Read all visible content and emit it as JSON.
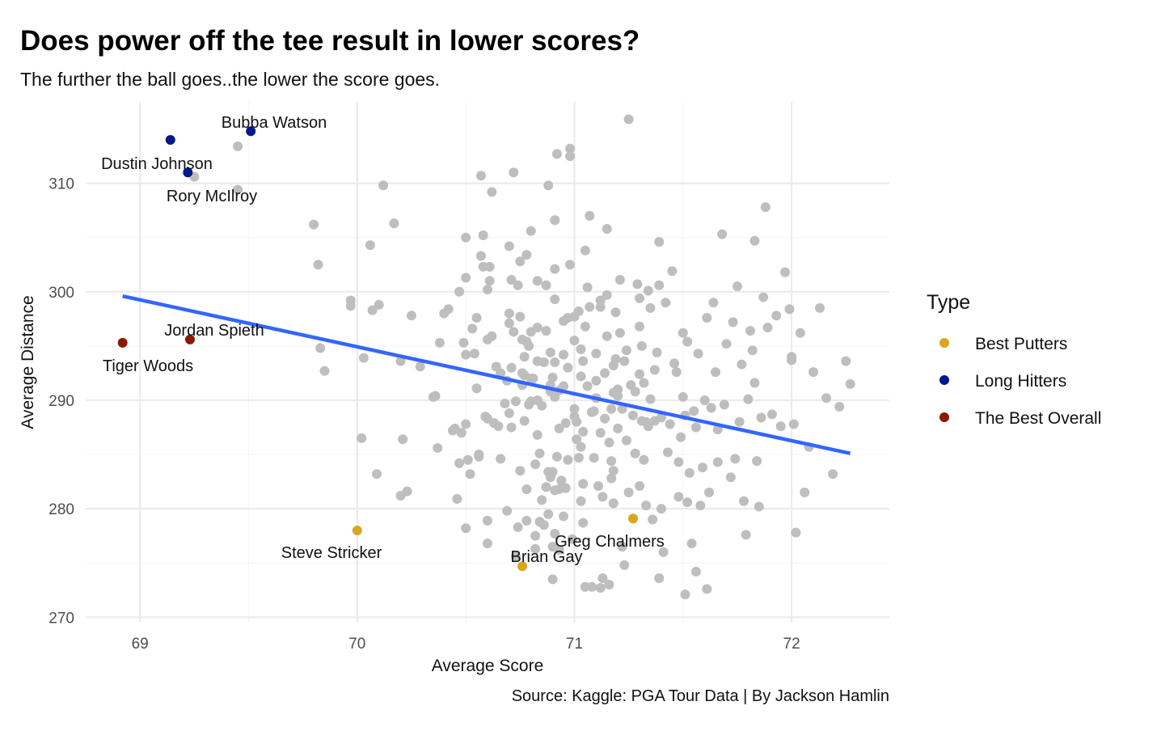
{
  "chart_data": {
    "type": "scatter",
    "title": "Does power off the tee result in lower scores?",
    "subtitle": "The further the ball goes..the lower the score goes.",
    "xlabel": "Average Score",
    "ylabel": "Average Distance",
    "caption": "Source: Kaggle: PGA Tour Data | By Jackson Hamlin",
    "xlim": [
      68.75,
      72.45
    ],
    "ylim": [
      269.5,
      317.5
    ],
    "x_ticks": [
      69,
      70,
      71,
      72
    ],
    "y_ticks": [
      270,
      280,
      290,
      300,
      310
    ],
    "grid": true,
    "legend": {
      "title": "Type",
      "position": "right",
      "entries": [
        {
          "label": "Best Putters",
          "color": "#DAA520"
        },
        {
          "label": "Long Hitters",
          "color": "#00198B"
        },
        {
          "label": "The Best Overall",
          "color": "#8B1A00"
        }
      ]
    },
    "trend_line": {
      "color": "#3366FF",
      "x": [
        68.92,
        72.27
      ],
      "y": [
        299.6,
        285.1
      ]
    },
    "background_color": "#BEBEBE",
    "background_points": [
      [
        69.25,
        310.6
      ],
      [
        69.45,
        313.4
      ],
      [
        69.45,
        309.4
      ],
      [
        69.8,
        306.2
      ],
      [
        69.82,
        302.5
      ],
      [
        69.83,
        294.8
      ],
      [
        69.85,
        292.7
      ],
      [
        69.97,
        299.2
      ],
      [
        69.97,
        298.7
      ],
      [
        70.02,
        286.5
      ],
      [
        70.03,
        293.9
      ],
      [
        70.06,
        304.3
      ],
      [
        70.07,
        298.3
      ],
      [
        70.1,
        298.8
      ],
      [
        70.09,
        283.2
      ],
      [
        70.12,
        309.8
      ],
      [
        70.17,
        306.3
      ],
      [
        70.2,
        293.6
      ],
      [
        70.2,
        281.2
      ],
      [
        70.21,
        286.4
      ],
      [
        70.23,
        281.6
      ],
      [
        70.25,
        297.8
      ],
      [
        70.29,
        293.1
      ],
      [
        70.35,
        290.3
      ],
      [
        70.36,
        290.4
      ],
      [
        70.37,
        285.6
      ],
      [
        70.38,
        295.3
      ],
      [
        70.4,
        298.0
      ],
      [
        70.42,
        298.4
      ],
      [
        70.44,
        287.2
      ],
      [
        70.45,
        287.4
      ],
      [
        70.46,
        280.9
      ],
      [
        70.47,
        284.2
      ],
      [
        70.47,
        300.0
      ],
      [
        70.48,
        287.0
      ],
      [
        70.49,
        295.3
      ],
      [
        70.5,
        278.2
      ],
      [
        70.5,
        287.8
      ],
      [
        70.5,
        294.2
      ],
      [
        70.5,
        301.3
      ],
      [
        70.5,
        305.0
      ],
      [
        70.51,
        284.5
      ],
      [
        70.52,
        283.2
      ],
      [
        70.53,
        296.6
      ],
      [
        70.54,
        294.3
      ],
      [
        70.55,
        291.1
      ],
      [
        70.55,
        297.6
      ],
      [
        70.56,
        284.8
      ],
      [
        70.56,
        285.0
      ],
      [
        70.57,
        303.3
      ],
      [
        70.57,
        310.7
      ],
      [
        70.58,
        302.3
      ],
      [
        70.58,
        305.2
      ],
      [
        70.59,
        288.5
      ],
      [
        70.6,
        276.8
      ],
      [
        70.6,
        278.9
      ],
      [
        70.6,
        288.3
      ],
      [
        70.6,
        295.6
      ],
      [
        70.6,
        300.2
      ],
      [
        70.61,
        302.3
      ],
      [
        70.61,
        301.0
      ],
      [
        70.62,
        295.9
      ],
      [
        70.62,
        309.2
      ],
      [
        70.63,
        287.9
      ],
      [
        70.64,
        293.1
      ],
      [
        70.65,
        287.6
      ],
      [
        70.66,
        284.6
      ],
      [
        70.66,
        292.5
      ],
      [
        70.68,
        289.7
      ],
      [
        70.69,
        279.8
      ],
      [
        70.69,
        291.8
      ],
      [
        70.7,
        288.8
      ],
      [
        70.7,
        297.1
      ],
      [
        70.7,
        298.0
      ],
      [
        70.7,
        304.2
      ],
      [
        70.71,
        301.1
      ],
      [
        70.71,
        287.5
      ],
      [
        70.71,
        293.0
      ],
      [
        70.72,
        296.3
      ],
      [
        70.72,
        311.0
      ],
      [
        70.73,
        289.9
      ],
      [
        70.73,
        275.6
      ],
      [
        70.74,
        300.6
      ],
      [
        70.74,
        278.3
      ],
      [
        70.75,
        297.7
      ],
      [
        70.75,
        302.8
      ],
      [
        70.75,
        283.5
      ],
      [
        70.76,
        291.4
      ],
      [
        70.76,
        292.5
      ],
      [
        70.76,
        295.6
      ],
      [
        70.77,
        288.1
      ],
      [
        70.77,
        292.3
      ],
      [
        70.77,
        294.0
      ],
      [
        70.78,
        278.9
      ],
      [
        70.78,
        303.4
      ],
      [
        70.78,
        295.4
      ],
      [
        70.78,
        281.8
      ],
      [
        70.79,
        289.6
      ],
      [
        70.79,
        295.0
      ],
      [
        70.8,
        289.9
      ],
      [
        70.8,
        292.0
      ],
      [
        70.8,
        296.3
      ],
      [
        70.8,
        305.6
      ],
      [
        70.81,
        292.0
      ],
      [
        70.82,
        276.3
      ],
      [
        70.82,
        277.5
      ],
      [
        70.82,
        284.1
      ],
      [
        70.83,
        286.8
      ],
      [
        70.83,
        290.0
      ],
      [
        70.83,
        293.6
      ],
      [
        70.83,
        296.7
      ],
      [
        70.83,
        301.0
      ],
      [
        70.84,
        278.8
      ],
      [
        70.84,
        285.1
      ],
      [
        70.85,
        280.8
      ],
      [
        70.85,
        289.5
      ],
      [
        70.86,
        293.5
      ],
      [
        70.86,
        278.5
      ],
      [
        70.87,
        300.6
      ],
      [
        70.87,
        282.0
      ],
      [
        70.87,
        296.4
      ],
      [
        70.88,
        279.5
      ],
      [
        70.88,
        309.8
      ],
      [
        70.88,
        283.4
      ],
      [
        70.89,
        282.9
      ],
      [
        70.89,
        290.8
      ],
      [
        70.89,
        291.4
      ],
      [
        70.89,
        294.4
      ],
      [
        70.9,
        273.5
      ],
      [
        70.9,
        276.5
      ],
      [
        70.9,
        283.4
      ],
      [
        70.9,
        292.1
      ],
      [
        70.91,
        277.7
      ],
      [
        70.91,
        281.7
      ],
      [
        70.91,
        290.3
      ],
      [
        70.91,
        293.5
      ],
      [
        70.91,
        299.3
      ],
      [
        70.91,
        302.1
      ],
      [
        70.91,
        306.6
      ],
      [
        70.92,
        284.8
      ],
      [
        70.92,
        312.7
      ],
      [
        70.93,
        290.9
      ],
      [
        70.93,
        281.8
      ],
      [
        70.93,
        276.2
      ],
      [
        70.93,
        287.4
      ],
      [
        70.94,
        282.6
      ],
      [
        70.95,
        279.3
      ],
      [
        70.95,
        294.2
      ],
      [
        70.95,
        297.3
      ],
      [
        70.95,
        291.3
      ],
      [
        70.96,
        281.9
      ],
      [
        70.96,
        287.9
      ],
      [
        70.97,
        284.5
      ],
      [
        70.97,
        293.0
      ],
      [
        70.97,
        297.6
      ],
      [
        70.98,
        312.5
      ],
      [
        70.98,
        313.2
      ],
      [
        70.98,
        302.5
      ],
      [
        70.99,
        277.2
      ],
      [
        71.0,
        288.5
      ],
      [
        71.0,
        289.2
      ],
      [
        71.0,
        295.5
      ],
      [
        71.0,
        297.7
      ],
      [
        71.01,
        286.4
      ],
      [
        71.01,
        288.0
      ],
      [
        71.02,
        298.2
      ],
      [
        71.02,
        284.7
      ],
      [
        71.03,
        292.2
      ],
      [
        71.03,
        294.7
      ],
      [
        71.03,
        285.7
      ],
      [
        71.03,
        280.7
      ],
      [
        71.04,
        278.7
      ],
      [
        71.04,
        282.3
      ],
      [
        71.04,
        287.1
      ],
      [
        71.04,
        293.6
      ],
      [
        71.05,
        303.8
      ],
      [
        71.05,
        296.8
      ],
      [
        71.06,
        291.3
      ],
      [
        71.06,
        300.4
      ],
      [
        71.07,
        298.6
      ],
      [
        71.07,
        307.0
      ],
      [
        71.08,
        288.9
      ],
      [
        71.08,
        272.8
      ],
      [
        71.09,
        284.7
      ],
      [
        71.09,
        289.0
      ],
      [
        71.1,
        290.2
      ],
      [
        71.1,
        291.8
      ],
      [
        71.1,
        294.3
      ],
      [
        71.11,
        282.1
      ],
      [
        71.12,
        298.6
      ],
      [
        71.12,
        287.0
      ],
      [
        71.12,
        299.2
      ],
      [
        71.13,
        273.6
      ],
      [
        71.13,
        281.1
      ],
      [
        71.14,
        288.3
      ],
      [
        71.14,
        292.5
      ],
      [
        71.15,
        299.7
      ],
      [
        71.15,
        305.8
      ],
      [
        71.15,
        295.9
      ],
      [
        71.16,
        273.0
      ],
      [
        71.16,
        286.1
      ],
      [
        71.17,
        289.2
      ],
      [
        71.17,
        282.8
      ],
      [
        71.17,
        284.4
      ],
      [
        71.18,
        280.5
      ],
      [
        71.18,
        283.5
      ],
      [
        71.18,
        290.7
      ],
      [
        71.18,
        293.2
      ],
      [
        71.19,
        293.8
      ],
      [
        71.19,
        298.1
      ],
      [
        71.2,
        287.4
      ],
      [
        71.2,
        290.4
      ],
      [
        71.2,
        291.0
      ],
      [
        71.21,
        296.2
      ],
      [
        71.21,
        301.1
      ],
      [
        71.22,
        289.2
      ],
      [
        71.22,
        276.5
      ],
      [
        71.23,
        293.6
      ],
      [
        71.23,
        274.8
      ],
      [
        71.24,
        286.3
      ],
      [
        71.24,
        294.6
      ],
      [
        71.25,
        281.5
      ],
      [
        71.26,
        291.4
      ],
      [
        71.27,
        288.6
      ],
      [
        71.28,
        285.1
      ],
      [
        71.28,
        290.8
      ],
      [
        71.29,
        300.7
      ],
      [
        71.3,
        282.1
      ],
      [
        71.3,
        292.4
      ],
      [
        71.3,
        296.8
      ],
      [
        71.3,
        299.4
      ],
      [
        71.31,
        288.1
      ],
      [
        71.31,
        295.0
      ],
      [
        71.32,
        291.6
      ],
      [
        71.32,
        284.5
      ],
      [
        71.33,
        280.3
      ],
      [
        71.33,
        288.0
      ],
      [
        71.34,
        300.1
      ],
      [
        71.34,
        287.6
      ],
      [
        71.35,
        290.1
      ],
      [
        71.35,
        298.5
      ],
      [
        71.36,
        279.0
      ],
      [
        71.37,
        288.1
      ],
      [
        71.37,
        292.8
      ],
      [
        71.38,
        294.4
      ],
      [
        71.39,
        300.6
      ],
      [
        71.39,
        304.6
      ],
      [
        71.4,
        288.4
      ],
      [
        71.4,
        280.0
      ],
      [
        71.41,
        276.0
      ],
      [
        71.42,
        299.0
      ],
      [
        71.43,
        285.2
      ],
      [
        71.44,
        287.8
      ],
      [
        71.46,
        293.4
      ],
      [
        71.47,
        292.6
      ],
      [
        71.48,
        284.3
      ],
      [
        71.48,
        281.1
      ],
      [
        71.49,
        286.6
      ],
      [
        71.5,
        296.2
      ],
      [
        71.5,
        290.3
      ],
      [
        71.51,
        288.6
      ],
      [
        71.52,
        295.4
      ],
      [
        71.52,
        280.6
      ],
      [
        71.53,
        283.3
      ],
      [
        71.54,
        276.8
      ],
      [
        71.55,
        289.0
      ],
      [
        71.56,
        287.5
      ],
      [
        71.57,
        294.3
      ],
      [
        71.58,
        280.3
      ],
      [
        71.59,
        283.8
      ],
      [
        71.6,
        290.0
      ],
      [
        71.61,
        297.6
      ],
      [
        71.62,
        281.5
      ],
      [
        71.63,
        289.3
      ],
      [
        71.64,
        299.0
      ],
      [
        71.65,
        292.6
      ],
      [
        71.66,
        287.3
      ],
      [
        71.66,
        284.3
      ],
      [
        71.68,
        305.3
      ],
      [
        71.69,
        289.6
      ],
      [
        71.7,
        295.2
      ],
      [
        71.72,
        282.9
      ],
      [
        71.73,
        297.2
      ],
      [
        71.74,
        284.6
      ],
      [
        71.75,
        300.5
      ],
      [
        71.76,
        288.0
      ],
      [
        71.77,
        293.3
      ],
      [
        71.78,
        280.7
      ],
      [
        71.79,
        277.6
      ],
      [
        71.8,
        290.1
      ],
      [
        71.81,
        296.4
      ],
      [
        71.82,
        294.6
      ],
      [
        71.83,
        291.6
      ],
      [
        71.84,
        284.4
      ],
      [
        71.85,
        280.2
      ],
      [
        71.86,
        288.4
      ],
      [
        71.87,
        299.5
      ],
      [
        71.88,
        307.8
      ],
      [
        71.89,
        296.7
      ],
      [
        71.91,
        288.7
      ],
      [
        71.93,
        297.8
      ],
      [
        71.95,
        287.6
      ],
      [
        71.97,
        301.8
      ],
      [
        71.99,
        298.4
      ],
      [
        72.0,
        293.7
      ],
      [
        72.01,
        287.8
      ],
      [
        72.02,
        277.8
      ],
      [
        72.04,
        296.2
      ],
      [
        72.06,
        281.5
      ],
      [
        72.08,
        285.7
      ],
      [
        72.1,
        292.6
      ],
      [
        72.13,
        298.5
      ],
      [
        72.16,
        290.2
      ],
      [
        72.19,
        283.2
      ],
      [
        72.22,
        289.4
      ],
      [
        72.25,
        293.6
      ],
      [
        72.27,
        291.5
      ],
      [
        71.51,
        272.1
      ],
      [
        71.61,
        272.6
      ],
      [
        71.56,
        274.2
      ],
      [
        71.12,
        272.7
      ],
      [
        71.39,
        273.6
      ],
      [
        71.05,
        272.8
      ],
      [
        71.83,
        304.7
      ],
      [
        71.45,
        301.9
      ],
      [
        71.25,
        315.9
      ],
      [
        72.0,
        294.0
      ]
    ],
    "highlighted": [
      {
        "name": "Bubba Watson",
        "type": "Long Hitters",
        "x": 69.51,
        "y": 314.8
      },
      {
        "name": "Dustin Johnson",
        "type": "Long Hitters",
        "x": 69.14,
        "y": 314.0
      },
      {
        "name": "Rory McIlroy",
        "type": "Long Hitters",
        "x": 69.22,
        "y": 311.0
      },
      {
        "name": "Jordan Spieth",
        "type": "The Best Overall",
        "x": 69.23,
        "y": 295.6
      },
      {
        "name": "Tiger Woods",
        "type": "The Best Overall",
        "x": 68.92,
        "y": 295.3
      },
      {
        "name": "Steve Stricker",
        "type": "Best Putters",
        "x": 70.0,
        "y": 278.0
      },
      {
        "name": "Greg Chalmers",
        "type": "Best Putters",
        "x": 71.27,
        "y": 279.1
      },
      {
        "name": "Brian Gay",
        "type": "Best Putters",
        "x": 70.76,
        "y": 274.7
      }
    ]
  }
}
